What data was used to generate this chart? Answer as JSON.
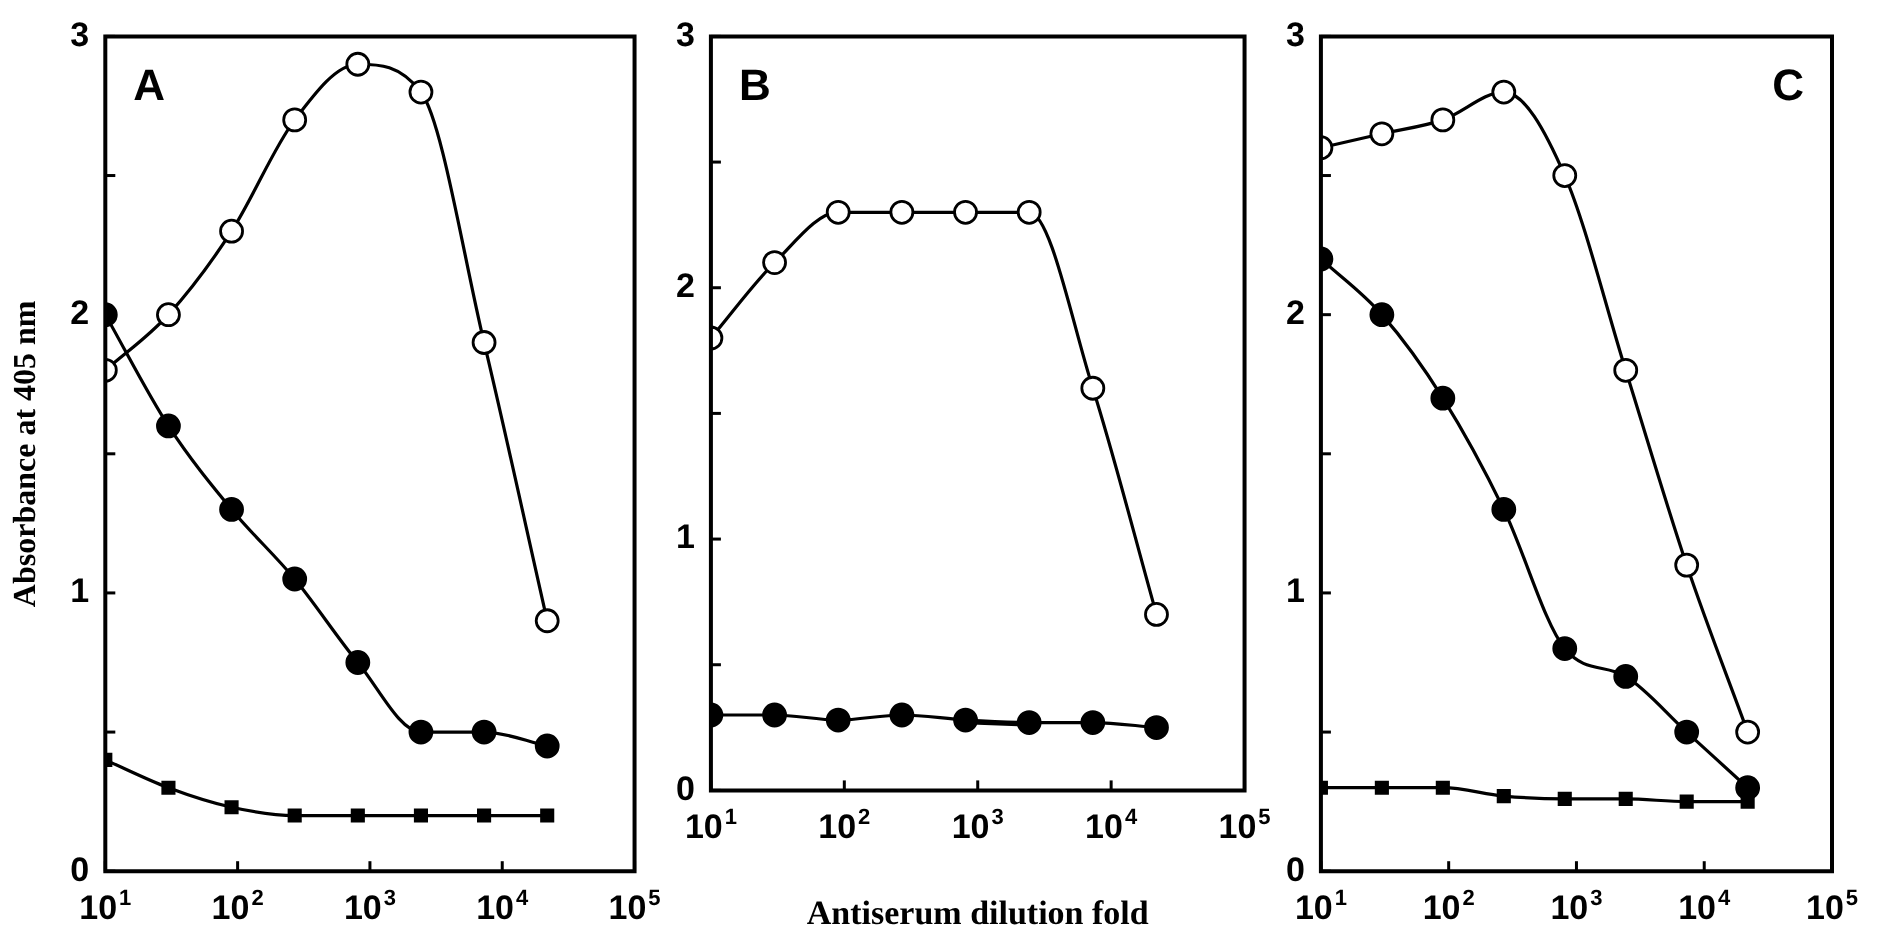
{
  "chart_data": [
    {
      "type": "line",
      "ylabel": "Absorbance at 405 nm",
      "annotations": [
        "A"
      ],
      "x": [
        10,
        30,
        90,
        270,
        810,
        2430,
        7290,
        21870
      ],
      "xlim": [
        10,
        100000
      ],
      "ylim": [
        0,
        3
      ],
      "log": "x",
      "grid": false,
      "legend": false,
      "line_style": "solid",
      "xticks": [
        {
          "value": 10,
          "label": "10$^{1}$"
        },
        {
          "value": 100,
          "label": "10$^{2}$"
        },
        {
          "value": 1000,
          "label": "10$^{3}$"
        },
        {
          "value": 10000,
          "label": "10$^{4}$"
        },
        {
          "value": 100000,
          "label": "10$^{5}$"
        }
      ],
      "yticks": [
        0,
        {
          "value": 0.5,
          "label": null
        },
        1,
        {
          "value": 1.5,
          "label": null
        },
        2,
        {
          "value": 2.5,
          "label": null
        },
        3
      ],
      "series": [
        {
          "color": "#000000",
          "marker": "circle",
          "values": [
            1.8,
            2.0,
            2.3,
            2.7,
            2.9,
            2.8,
            1.9,
            0.9
          ]
        },
        {
          "color": "#000000",
          "marker": "circle",
          "values": [
            2.0,
            1.6,
            1.3,
            1.05,
            0.75,
            0.5,
            0.5,
            0.45
          ]
        },
        {
          "color": "#000000",
          "marker": "square",
          "values": [
            0.4,
            0.3,
            0.23,
            0.2,
            0.2,
            0.2,
            0.2,
            0.2
          ]
        }
      ]
    },
    {
      "type": "line",
      "xlabel": "Antiserum dilution fold",
      "annotations": [
        "B"
      ],
      "x": [
        10,
        30,
        90,
        270,
        810,
        2430,
        7290,
        21870
      ],
      "xlim": [
        10,
        100000
      ],
      "ylim": [
        0,
        3
      ],
      "log": "x",
      "grid": false,
      "legend": false,
      "line_style": "solid",
      "xticks": [
        {
          "value": 10,
          "label": "10$^{1}$"
        },
        {
          "value": 100,
          "label": "10$^{2}$"
        },
        {
          "value": 1000,
          "label": "10$^{3}$"
        },
        {
          "value": 10000,
          "label": "10$^{4}$"
        },
        {
          "value": 100000,
          "label": "10$^{5}$"
        }
      ],
      "yticks": [
        0,
        {
          "value": 0.5,
          "label": null
        },
        1,
        {
          "value": 1.5,
          "label": null
        },
        2,
        {
          "value": 2.5,
          "label": null
        },
        3
      ],
      "series": [
        {
          "color": "#000000",
          "marker": "circle",
          "values": [
            1.8,
            2.1,
            2.3,
            2.3,
            2.3,
            2.3,
            1.6,
            0.7
          ]
        },
        {
          "color": "#000000",
          "marker": "circle",
          "values": [
            0.3,
            0.3,
            0.28,
            0.3,
            0.28,
            0.27,
            0.27,
            0.25
          ]
        },
        {
          "color": "#000000",
          "marker": "square",
          "values": [
            null,
            null,
            0.28,
            null,
            0.27,
            0.26,
            null,
            null
          ]
        }
      ]
    },
    {
      "type": "line",
      "annotations": [
        "C"
      ],
      "x": [
        10,
        30,
        90,
        270,
        810,
        2430,
        7290,
        21870
      ],
      "xlim": [
        10,
        100000
      ],
      "ylim": [
        0,
        3
      ],
      "log": "x",
      "grid": false,
      "legend": false,
      "line_style": "solid",
      "xticks": [
        {
          "value": 10,
          "label": "10$^{1}$"
        },
        {
          "value": 100,
          "label": "10$^{2}$"
        },
        {
          "value": 1000,
          "label": "10$^{3}$"
        },
        {
          "value": 10000,
          "label": "10$^{4}$"
        },
        {
          "value": 100000,
          "label": "10$^{5}$"
        }
      ],
      "yticks": [
        0,
        {
          "value": 0.5,
          "label": null
        },
        1,
        {
          "value": 1.5,
          "label": null
        },
        2,
        {
          "value": 2.5,
          "label": null
        },
        3
      ],
      "series": [
        {
          "color": "#000000",
          "marker": "circle",
          "values": [
            2.6,
            2.65,
            2.7,
            2.8,
            2.5,
            1.8,
            1.1,
            0.5
          ]
        },
        {
          "color": "#000000",
          "marker": "circle",
          "values": [
            2.2,
            2.0,
            1.7,
            1.3,
            0.8,
            0.7,
            0.5,
            0.3
          ]
        },
        {
          "color": "#000000",
          "marker": "square",
          "values": [
            0.3,
            0.3,
            0.3,
            0.27,
            0.26,
            0.26,
            0.25,
            0.25
          ]
        }
      ]
    }
  ]
}
